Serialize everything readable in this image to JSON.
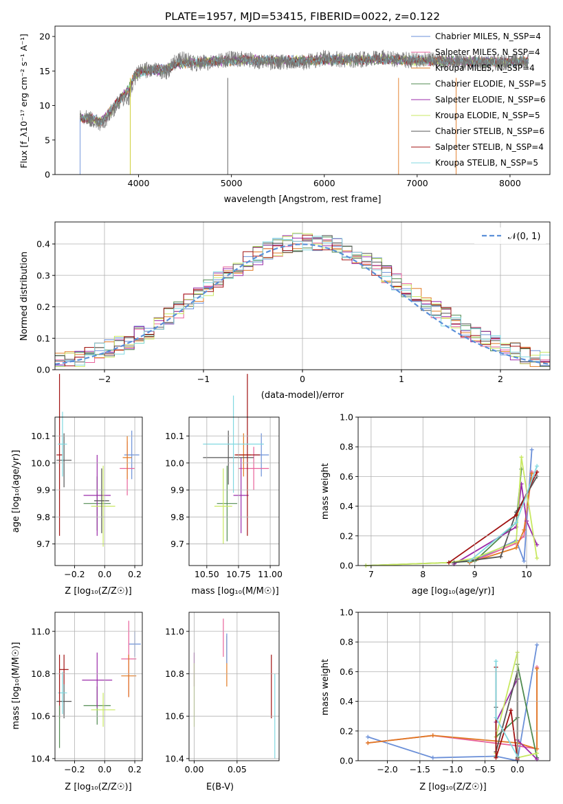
{
  "colors": {
    "chabrier_miles": "#6a8fd8",
    "salpeter_miles": "#e8609a",
    "kroupa_miles": "#e07820",
    "chabrier_elodie": "#4f8a4f",
    "salpeter_elodie": "#9a2aa8",
    "kroupa_elodie": "#c8e860",
    "chabrier_stelib": "#555555",
    "salpeter_stelib": "#a01010",
    "kroupa_stelib": "#80d8e0",
    "gaussian": "#5a8fd8"
  },
  "chart_data": [
    {
      "id": "spectrum",
      "type": "line",
      "title": "PLATE=1957, MJD=53415, FIBERID=0022, z=0.122",
      "xlabel": "wavelength [Angstrom, rest frame]",
      "ylabel": "Flux [f_λ10⁻¹⁷ erg cm⁻² s⁻¹ A⁻¹]",
      "xlim": [
        3100,
        8430
      ],
      "ylim": [
        0,
        21.5
      ],
      "xticks": [
        "4000",
        "5000",
        "6000",
        "7000",
        "8000"
      ],
      "yticks": [
        "0",
        "5",
        "10",
        "15",
        "20"
      ],
      "legend_position": "top-right",
      "legend": [
        "Chabrier MILES, N_SSP=4",
        "Salpeter MILES, N_SSP=4",
        "Kroupa MILES, N_SSP=4",
        "Chabrier ELODIE, N_SSP=5",
        "Salpeter ELODIE, N_SSP=6",
        "Kroupa ELODIE, N_SSP=5",
        "Chabrier STELIB, N_SSP=6",
        "Salpeter STELIB, N_SSP=4",
        "Kroupa STELIB, N_SSP=5"
      ],
      "data_x": [
        3370,
        3500,
        3600,
        3700,
        3800,
        3900,
        3950,
        4000,
        4100,
        4200,
        4300,
        4400,
        4500,
        4600,
        4800,
        5000,
        5200,
        5400,
        5600,
        5800,
        6000,
        6200,
        6400,
        6600,
        6800,
        7000,
        7200,
        7400,
        7600,
        7800,
        8000,
        8200
      ],
      "data_y": [
        8.3,
        8.0,
        7.2,
        9.0,
        10.6,
        11.3,
        13.8,
        14.8,
        15.2,
        15.0,
        14.8,
        16.4,
        16.8,
        16.0,
        16.3,
        16.8,
        16.6,
        16.2,
        16.4,
        16.3,
        16.9,
        16.6,
        16.7,
        17.0,
        16.6,
        16.6,
        16.5,
        16.4,
        16.2,
        16.1,
        16.3,
        16.4
      ],
      "model_y": [
        8.2,
        8.1,
        7.6,
        9.2,
        10.9,
        12.5,
        14.1,
        14.8,
        15.1,
        15.1,
        15.3,
        16.0,
        16.1,
        16.2,
        16.4,
        16.5,
        16.6,
        16.5,
        16.5,
        16.5,
        16.6,
        16.6,
        16.6,
        16.7,
        16.6,
        16.5,
        16.5,
        16.4,
        16.3,
        16.3,
        16.3,
        16.4
      ]
    },
    {
      "id": "residuals",
      "type": "bar",
      "xlabel": "(data-model)/error",
      "ylabel": "Normed distribution",
      "xlim": [
        -2.5,
        2.5
      ],
      "ylim": [
        0,
        0.47
      ],
      "xticks": [
        "−2",
        "−1",
        "0",
        "1",
        "2"
      ],
      "yticks": [
        "0.0",
        "0.1",
        "0.2",
        "0.3",
        "0.4"
      ],
      "bin_width": 0.1,
      "bin_start": -2.5,
      "legend_position": "top-right",
      "legend": [
        "𝒩(0, 1)"
      ],
      "gaussian": {
        "mean": 0,
        "sigma": 1
      }
    },
    {
      "id": "age-vs-Z",
      "type": "scatter",
      "xlabel": "Z [log₁₀(Z/Z☉)]",
      "ylabel": "age  [log₁₀(age/yr)]",
      "xlim": [
        -0.33,
        0.25
      ],
      "ylim": [
        9.62,
        10.17
      ],
      "xticks": [
        "−0.2",
        "0.0",
        "0.2"
      ],
      "xtick_values": [
        -0.2,
        0.0,
        0.2
      ],
      "yticks": [
        "9.7",
        "9.8",
        "9.9",
        "10.0",
        "10.1"
      ],
      "ytick_values": [
        9.7,
        9.8,
        9.9,
        10.0,
        10.1
      ],
      "points": [
        {
          "key": "chabrier_miles",
          "x": 0.18,
          "xerr": 0.05,
          "y": 10.03,
          "yerr": 0.09
        },
        {
          "key": "salpeter_miles",
          "x": 0.15,
          "xerr": 0.05,
          "y": 9.98,
          "yerr": 0.1
        },
        {
          "key": "kroupa_miles",
          "x": 0.15,
          "xerr": 0.03,
          "y": 10.02,
          "yerr": 0.08
        },
        {
          "key": "chabrier_elodie",
          "x": -0.05,
          "xerr": 0.09,
          "y": 9.85,
          "yerr": 0.1
        },
        {
          "key": "salpeter_elodie",
          "x": -0.05,
          "xerr": 0.09,
          "y": 9.88,
          "yerr": 0.15
        },
        {
          "key": "kroupa_elodie",
          "x": -0.01,
          "xerr": 0.08,
          "y": 9.84,
          "yerr": 0.15
        },
        {
          "key": "chabrier_stelib",
          "x": -0.02,
          "xerr": 0.05,
          "y": 9.86,
          "yerr": 0.12
        },
        {
          "key": "salpeter_stelib",
          "x": -0.3,
          "xerr": 0.02,
          "y": 10.03,
          "yerr": 0.3
        },
        {
          "key": "chabrier_stelib",
          "x": -0.27,
          "xerr": 0.05,
          "y": 10.01,
          "yerr": 0.1
        },
        {
          "key": "kroupa_stelib",
          "x": -0.28,
          "xerr": 0.03,
          "y": 10.07,
          "yerr": 0.12
        }
      ]
    },
    {
      "id": "age-vs-mass",
      "type": "scatter",
      "xlabel": "mass [log₁₀(M/M☉)]",
      "ylabel": "",
      "xlim": [
        10.36,
        11.07
      ],
      "ylim": [
        9.62,
        10.17
      ],
      "xticks": [
        "10.50",
        "10.75",
        "11.00"
      ],
      "xtick_values": [
        10.5,
        10.75,
        11.0
      ],
      "yticks": [
        "9.7",
        "9.8",
        "9.9",
        "10.0",
        "10.1"
      ],
      "ytick_values": [
        9.7,
        9.8,
        9.9,
        10.0,
        10.1
      ],
      "points": [
        {
          "key": "chabrier_miles",
          "x": 10.93,
          "xerr": 0.06,
          "y": 10.03,
          "yerr": 0.08
        },
        {
          "key": "salpeter_miles",
          "x": 10.87,
          "xerr": 0.12,
          "y": 9.98,
          "yerr": 0.08
        },
        {
          "key": "kroupa_miles",
          "x": 10.79,
          "xerr": 0.06,
          "y": 10.03,
          "yerr": 0.08
        },
        {
          "key": "chabrier_elodie",
          "x": 10.66,
          "xerr": 0.08,
          "y": 9.85,
          "yerr": 0.14
        },
        {
          "key": "salpeter_elodie",
          "x": 10.77,
          "xerr": 0.06,
          "y": 9.88,
          "yerr": 0.14
        },
        {
          "key": "kroupa_elodie",
          "x": 10.63,
          "xerr": 0.07,
          "y": 9.84,
          "yerr": 0.14
        },
        {
          "key": "chabrier_stelib",
          "x": 10.67,
          "xerr": 0.2,
          "y": 10.02,
          "yerr": 0.1
        },
        {
          "key": "salpeter_stelib",
          "x": 10.82,
          "xerr": 0.1,
          "y": 10.03,
          "yerr": 0.3
        },
        {
          "key": "kroupa_stelib",
          "x": 10.71,
          "xerr": 0.24,
          "y": 10.07,
          "yerr": 0.18
        }
      ]
    },
    {
      "id": "weight-vs-age",
      "type": "line",
      "xlabel": "age  [log₁₀(age/yr)]",
      "ylabel": "mass weight",
      "xlim": [
        6.75,
        10.45
      ],
      "ylim": [
        0,
        1
      ],
      "xticks": [
        "7",
        "8",
        "9",
        "10"
      ],
      "xtick_values": [
        7,
        8,
        9,
        10
      ],
      "yticks": [
        "0.0",
        "0.2",
        "0.4",
        "0.6",
        "0.8",
        "1.0"
      ],
      "ytick_values": [
        0,
        0.2,
        0.4,
        0.6,
        0.8,
        1.0
      ],
      "series": [
        {
          "key": "chabrier_miles",
          "x": [
            8.9,
            9.8,
            9.95,
            10.1
          ],
          "y": [
            0.02,
            0.17,
            0.03,
            0.78
          ]
        },
        {
          "key": "salpeter_miles",
          "x": [
            8.9,
            9.8,
            9.95,
            10.1
          ],
          "y": [
            0.02,
            0.15,
            0.2,
            0.63
          ]
        },
        {
          "key": "kroupa_miles",
          "x": [
            8.9,
            9.8,
            9.95,
            10.1
          ],
          "y": [
            0.02,
            0.12,
            0.24,
            0.62
          ]
        },
        {
          "key": "chabrier_elodie",
          "x": [
            6.9,
            8.5,
            9.0,
            9.8,
            9.9
          ],
          "y": [
            0.0,
            0.02,
            0.03,
            0.29,
            0.65
          ]
        },
        {
          "key": "salpeter_elodie",
          "x": [
            8.6,
            9.8,
            9.9,
            10.0,
            10.2
          ],
          "y": [
            0.01,
            0.26,
            0.55,
            0.3,
            0.14
          ]
        },
        {
          "key": "kroupa_elodie",
          "x": [
            6.9,
            8.5,
            9.0,
            9.8,
            9.9,
            10.2
          ],
          "y": [
            0.0,
            0.02,
            0.05,
            0.16,
            0.73,
            0.05
          ]
        },
        {
          "key": "chabrier_stelib",
          "x": [
            8.6,
            9.5,
            9.8,
            10.2
          ],
          "y": [
            0.02,
            0.06,
            0.36,
            0.6
          ]
        },
        {
          "key": "salpeter_stelib",
          "x": [
            8.5,
            9.8,
            10.2
          ],
          "y": [
            0.02,
            0.34,
            0.63
          ]
        },
        {
          "key": "kroupa_stelib",
          "x": [
            8.9,
            9.8,
            10.2
          ],
          "y": [
            0.03,
            0.29,
            0.67
          ]
        }
      ]
    },
    {
      "id": "mass-vs-Z",
      "type": "scatter",
      "xlabel": "Z [log₁₀(Z/Z☉)]",
      "ylabel": "mass [log₁₀(M/M☉)]",
      "xlim": [
        -0.33,
        0.25
      ],
      "ylim": [
        10.39,
        11.09
      ],
      "xticks": [
        "−0.2",
        "0.0",
        "0.2"
      ],
      "xtick_values": [
        -0.2,
        0.0,
        0.2
      ],
      "yticks": [
        "10.4",
        "10.6",
        "10.8",
        "11.0"
      ],
      "ytick_values": [
        10.4,
        10.6,
        10.8,
        11.0
      ],
      "points": [
        {
          "key": "chabrier_miles",
          "x": 0.2,
          "xerr": 0.04,
          "y": 10.94,
          "yerr": 0.06
        },
        {
          "key": "salpeter_miles",
          "x": 0.16,
          "xerr": 0.05,
          "y": 10.87,
          "yerr": 0.18
        },
        {
          "key": "kroupa_miles",
          "x": 0.16,
          "xerr": 0.05,
          "y": 10.79,
          "yerr": 0.1
        },
        {
          "key": "chabrier_elodie",
          "x": -0.05,
          "xerr": 0.09,
          "y": 10.65,
          "yerr": 0.09
        },
        {
          "key": "salpeter_elodie",
          "x": -0.05,
          "xerr": 0.1,
          "y": 10.77,
          "yerr": 0.13
        },
        {
          "key": "kroupa_elodie",
          "x": -0.01,
          "xerr": 0.08,
          "y": 10.63,
          "yerr": 0.08
        },
        {
          "key": "chabrier_stelib",
          "x": -0.27,
          "xerr": 0.05,
          "y": 10.67,
          "yerr": 0.08
        },
        {
          "key": "salpeter_stelib",
          "x": -0.27,
          "xerr": 0.03,
          "y": 10.82,
          "yerr": 0.07
        },
        {
          "key": "kroupa_stelib",
          "x": -0.28,
          "xerr": 0.03,
          "y": 10.71,
          "yerr": 0.1
        },
        {
          "key": "salpeter_stelib",
          "x": -0.3,
          "xerr": 0.0,
          "y": 10.74,
          "yerr": 0.15
        },
        {
          "key": "chabrier_elodie",
          "x": -0.3,
          "xerr": 0.0,
          "y": 10.55,
          "yerr": 0.1
        }
      ]
    },
    {
      "id": "mass-vs-EBV",
      "type": "scatter",
      "xlabel": "E(B-V)",
      "ylabel": "",
      "xlim": [
        -0.006,
        0.099
      ],
      "ylim": [
        10.39,
        11.09
      ],
      "xticks": [
        "0.00",
        "0.05"
      ],
      "xtick_values": [
        0.0,
        0.05
      ],
      "yticks": [
        "10.4",
        "10.6",
        "10.8",
        "11.0"
      ],
      "ytick_values": [
        10.4,
        10.6,
        10.8,
        11.0
      ],
      "points": [
        {
          "key": "salpeter_elodie",
          "x": 0.0,
          "xerr": 0,
          "y": 10.82,
          "yerr": 0.08
        },
        {
          "key": "kroupa_elodie",
          "x": 0.0,
          "xerr": 0,
          "y": 10.7,
          "yerr": 0.15
        },
        {
          "key": "salpeter_miles",
          "x": 0.034,
          "xerr": 0,
          "y": 10.97,
          "yerr": 0.09
        },
        {
          "key": "kroupa_miles",
          "x": 0.038,
          "xerr": 0,
          "y": 10.86,
          "yerr": 0.12
        },
        {
          "key": "chabrier_miles",
          "x": 0.038,
          "xerr": 0,
          "y": 10.92,
          "yerr": 0.07
        },
        {
          "key": "salpeter_stelib",
          "x": 0.09,
          "xerr": 0,
          "y": 10.74,
          "yerr": 0.15
        },
        {
          "key": "kroupa_stelib",
          "x": 0.094,
          "xerr": 0,
          "y": 10.6,
          "yerr": 0.2
        }
      ]
    },
    {
      "id": "weight-vs-Z",
      "type": "line",
      "xlabel": "Z [log₁₀(Z/Z☉)]",
      "ylabel": "mass weight",
      "xlim": [
        -2.45,
        0.5
      ],
      "ylim": [
        0,
        1
      ],
      "xticks": [
        "−2.0",
        "−1.5",
        "−1.0",
        "−0.5",
        "0.0"
      ],
      "xtick_values": [
        -2.0,
        -1.5,
        -1.0,
        -0.5,
        0.0
      ],
      "yticks": [
        "0.0",
        "0.2",
        "0.4",
        "0.6",
        "0.8",
        "1.0"
      ],
      "ytick_values": [
        0,
        0.2,
        0.4,
        0.6,
        0.8,
        1.0
      ],
      "series": [
        {
          "key": "chabrier_miles",
          "x": [
            -2.3,
            -1.3,
            -0.33,
            0.0,
            0.3
          ],
          "y": [
            0.16,
            0.02,
            0.03,
            0.0,
            0.78
          ]
        },
        {
          "key": "salpeter_miles",
          "x": [
            -2.3,
            -1.3,
            0.0,
            0.3,
            0.3
          ],
          "y": [
            0.12,
            0.17,
            0.1,
            0.08,
            0.63
          ]
        },
        {
          "key": "kroupa_miles",
          "x": [
            -2.3,
            -1.3,
            0.0,
            0.3,
            0.3
          ],
          "y": [
            0.12,
            0.17,
            0.12,
            0.08,
            0.62
          ]
        },
        {
          "key": "chabrier_elodie",
          "x": [
            -0.33,
            -0.33,
            0.0,
            0.0,
            0.3
          ],
          "y": [
            0.03,
            0.16,
            0.29,
            0.65,
            0.02
          ]
        },
        {
          "key": "salpeter_elodie",
          "x": [
            -0.33,
            0.0,
            0.0,
            0.3
          ],
          "y": [
            0.26,
            0.55,
            0.14,
            0.01
          ]
        },
        {
          "key": "kroupa_elodie",
          "x": [
            -0.33,
            -0.33,
            0.0,
            0.0,
            0.3
          ],
          "y": [
            0.05,
            0.16,
            0.73,
            0.02,
            0.05
          ]
        },
        {
          "key": "chabrier_stelib",
          "x": [
            -0.33,
            -0.33,
            0.0,
            0.0
          ],
          "y": [
            0.36,
            0.06,
            0.6,
            0.02
          ]
        },
        {
          "key": "salpeter_stelib",
          "x": [
            -0.33,
            -0.33,
            -0.1,
            0.0
          ],
          "y": [
            0.63,
            0.02,
            0.34,
            0.01
          ]
        },
        {
          "key": "kroupa_stelib",
          "x": [
            -0.33,
            -0.33,
            0.0
          ],
          "y": [
            0.67,
            0.29,
            0.03
          ]
        }
      ]
    }
  ]
}
